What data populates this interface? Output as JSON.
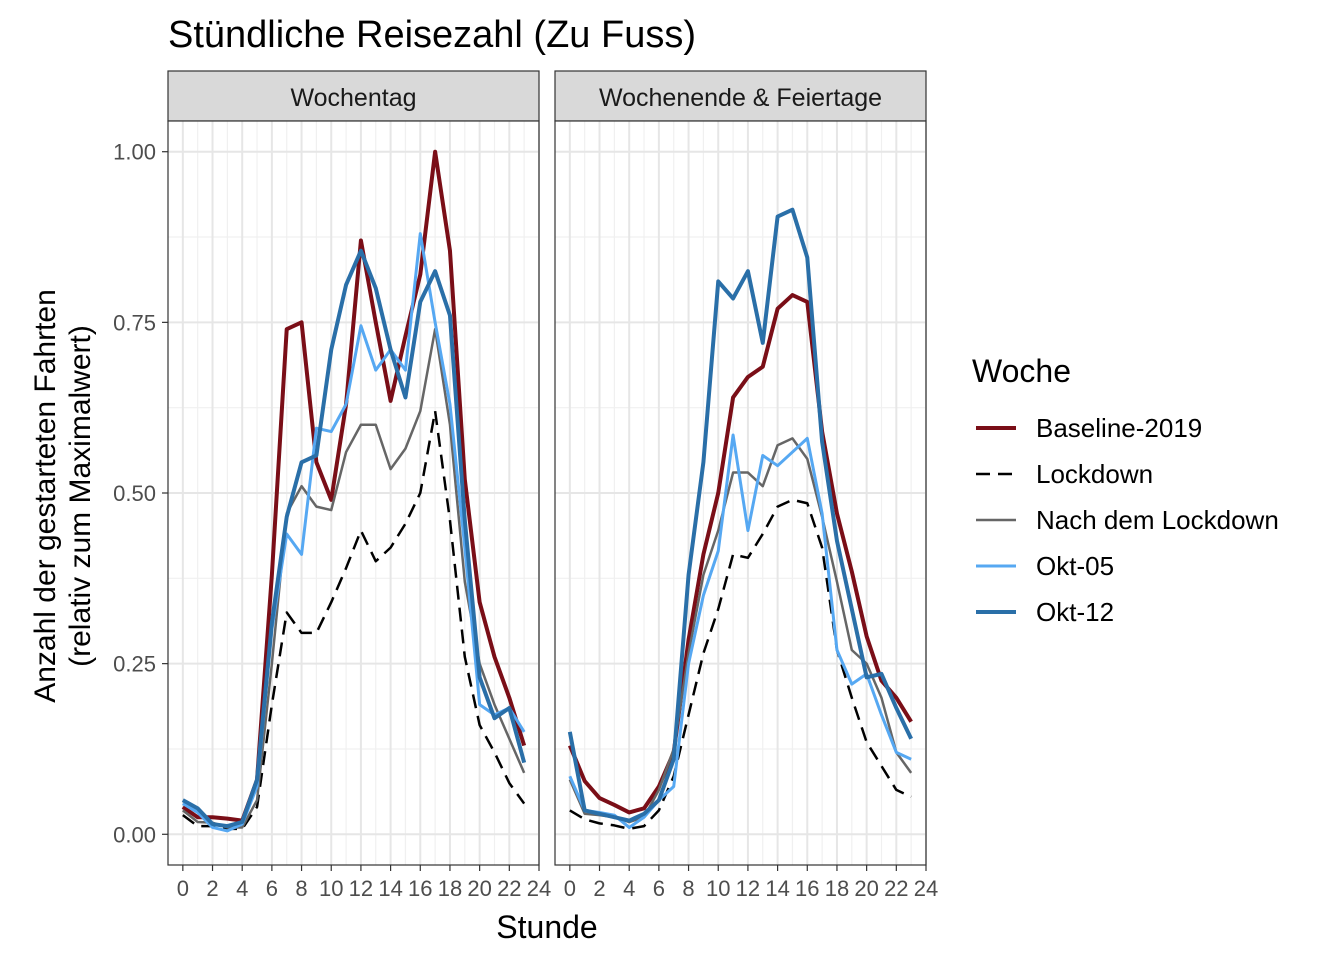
{
  "chart_data": {
    "type": "line",
    "title": "Stündliche Reisezahl (Zu Fuss)",
    "xlabel": "Stunde",
    "ylabel_lines": [
      "Anzahl der gestarteten Fahrten",
      "(relativ zum Maximalwert)"
    ],
    "xlim": [
      -1,
      24
    ],
    "ylim": [
      -0.045,
      1.045
    ],
    "x_ticks": [
      0,
      2,
      4,
      6,
      8,
      10,
      12,
      14,
      16,
      18,
      20,
      22,
      24
    ],
    "y_ticks": [
      0.0,
      0.25,
      0.5,
      0.75,
      1.0
    ],
    "y_tick_labels": [
      "0.00",
      "0.25",
      "0.50",
      "0.75",
      "1.00"
    ],
    "grid": true,
    "legend_position": "right",
    "legend": {
      "title": "Woche",
      "entries": [
        {
          "name": "Baseline-2019",
          "color": "#7a0e17",
          "dash": "solid",
          "width": 4
        },
        {
          "name": "Lockdown",
          "color": "#000000",
          "dash": "dashed",
          "width": 2.5
        },
        {
          "name": "Nach dem Lockdown",
          "color": "#666666",
          "dash": "solid",
          "width": 2.5
        },
        {
          "name": "Okt-05",
          "color": "#56a8f2",
          "dash": "solid",
          "width": 3
        },
        {
          "name": "Okt-12",
          "color": "#2a6fa8",
          "dash": "solid",
          "width": 4
        }
      ]
    },
    "panels": [
      {
        "label": "Wochentag",
        "x": [
          0,
          1,
          2,
          3,
          4,
          5,
          6,
          7,
          8,
          9,
          10,
          11,
          12,
          13,
          14,
          15,
          16,
          17,
          18,
          19,
          20,
          21,
          22,
          23
        ],
        "series": [
          {
            "name": "Baseline-2019",
            "values": [
              0.04,
              0.025,
              0.025,
              0.023,
              0.02,
              0.08,
              0.38,
              0.74,
              0.75,
              0.545,
              0.49,
              0.63,
              0.87,
              0.75,
              0.635,
              0.73,
              0.82,
              1.0,
              0.855,
              0.52,
              0.34,
              0.26,
              0.2,
              0.13
            ]
          },
          {
            "name": "Lockdown",
            "values": [
              0.028,
              0.012,
              0.012,
              0.008,
              0.008,
              0.04,
              0.19,
              0.325,
              0.295,
              0.295,
              0.34,
              0.39,
              0.445,
              0.4,
              0.42,
              0.455,
              0.5,
              0.62,
              0.46,
              0.26,
              0.16,
              0.12,
              0.075,
              0.045
            ]
          },
          {
            "name": "Nach dem Lockdown",
            "values": [
              0.035,
              0.018,
              0.017,
              0.01,
              0.01,
              0.05,
              0.25,
              0.47,
              0.51,
              0.48,
              0.475,
              0.56,
              0.6,
              0.6,
              0.535,
              0.565,
              0.62,
              0.74,
              0.6,
              0.37,
              0.25,
              0.19,
              0.14,
              0.09
            ]
          },
          {
            "name": "Okt-05",
            "values": [
              0.045,
              0.032,
              0.01,
              0.005,
              0.015,
              0.07,
              0.3,
              0.44,
              0.41,
              0.595,
              0.59,
              0.63,
              0.745,
              0.68,
              0.71,
              0.68,
              0.88,
              0.75,
              0.63,
              0.42,
              0.19,
              0.175,
              0.185,
              0.15
            ]
          },
          {
            "name": "Okt-12",
            "values": [
              0.05,
              0.038,
              0.015,
              0.012,
              0.018,
              0.08,
              0.31,
              0.465,
              0.545,
              0.555,
              0.71,
              0.805,
              0.855,
              0.8,
              0.71,
              0.64,
              0.78,
              0.825,
              0.76,
              0.46,
              0.23,
              0.17,
              0.185,
              0.105
            ]
          }
        ]
      },
      {
        "label": "Wochenende & Feiertage",
        "x": [
          0,
          1,
          2,
          3,
          4,
          5,
          6,
          7,
          8,
          9,
          10,
          11,
          12,
          13,
          14,
          15,
          16,
          17,
          18,
          19,
          20,
          21,
          22,
          23
        ],
        "series": [
          {
            "name": "Baseline-2019",
            "values": [
              0.13,
              0.078,
              0.053,
              0.043,
              0.032,
              0.038,
              0.07,
              0.12,
              0.285,
              0.41,
              0.5,
              0.64,
              0.67,
              0.685,
              0.77,
              0.79,
              0.78,
              0.59,
              0.47,
              0.385,
              0.29,
              0.225,
              0.2,
              0.165
            ]
          },
          {
            "name": "Lockdown",
            "values": [
              0.035,
              0.022,
              0.016,
              0.013,
              0.008,
              0.012,
              0.035,
              0.085,
              0.175,
              0.265,
              0.33,
              0.41,
              0.405,
              0.44,
              0.48,
              0.49,
              0.485,
              0.42,
              0.27,
              0.2,
              0.135,
              0.1,
              0.065,
              0.055
            ]
          },
          {
            "name": "Nach dem Lockdown",
            "values": [
              0.08,
              0.03,
              0.028,
              0.025,
              0.018,
              0.025,
              0.065,
              0.125,
              0.265,
              0.38,
              0.445,
              0.53,
              0.53,
              0.51,
              0.57,
              0.58,
              0.55,
              0.465,
              0.37,
              0.27,
              0.25,
              0.2,
              0.12,
              0.09
            ]
          },
          {
            "name": "Okt-05",
            "values": [
              0.085,
              0.035,
              0.032,
              0.028,
              0.01,
              0.025,
              0.05,
              0.07,
              0.25,
              0.35,
              0.415,
              0.585,
              0.445,
              0.555,
              0.54,
              0.56,
              0.58,
              0.47,
              0.27,
              0.22,
              0.235,
              0.175,
              0.12,
              0.11
            ]
          },
          {
            "name": "Okt-12",
            "values": [
              0.15,
              0.035,
              0.03,
              0.025,
              0.02,
              0.03,
              0.05,
              0.11,
              0.38,
              0.545,
              0.81,
              0.785,
              0.825,
              0.72,
              0.905,
              0.915,
              0.845,
              0.575,
              0.43,
              0.33,
              0.23,
              0.235,
              0.185,
              0.14
            ]
          }
        ]
      }
    ]
  }
}
